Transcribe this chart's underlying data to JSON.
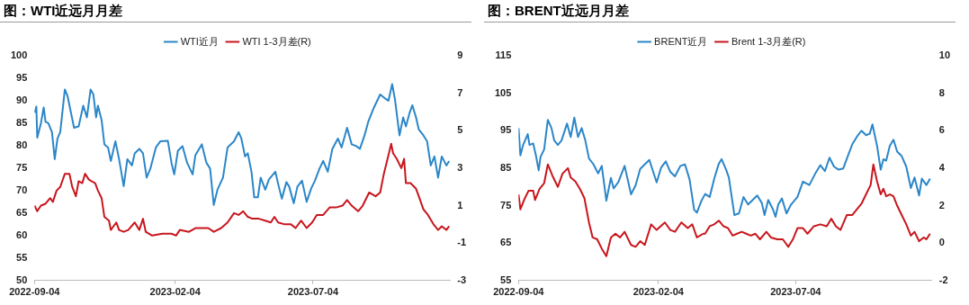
{
  "chart_data": [
    {
      "type": "line",
      "title": "图：WTI近远月月差",
      "xlim": [
        "2022-09-04",
        "2023-11-30"
      ],
      "xticks": [
        "2022-09-04",
        "2023-02-04",
        "2023-07-04"
      ],
      "ylim": [
        50,
        100
      ],
      "yticks": [
        50,
        55,
        60,
        65,
        70,
        75,
        80,
        85,
        90,
        95,
        100
      ],
      "y2lim": [
        -3,
        9
      ],
      "y2ticks": [
        -3,
        -1,
        1,
        3,
        5,
        7,
        9
      ],
      "grid": false,
      "legend": "top",
      "marker": "none",
      "line_style": "solid",
      "series": [
        {
          "name": "WTI近月",
          "color": "#2b86c8",
          "x": [
            "2022-09-04",
            "2022-09-06",
            "2022-09-07",
            "2022-09-11",
            "2022-09-14",
            "2022-09-16",
            "2022-09-19",
            "2022-09-23",
            "2022-09-26",
            "2022-09-29",
            "2022-10-02",
            "2022-10-07",
            "2022-10-10",
            "2022-10-14",
            "2022-10-17",
            "2022-10-22",
            "2022-10-27",
            "2022-10-31",
            "2022-11-04",
            "2022-11-07",
            "2022-11-10",
            "2022-11-12",
            "2022-11-16",
            "2022-11-19",
            "2022-11-23",
            "2022-11-26",
            "2022-12-01",
            "2022-12-05",
            "2022-12-10",
            "2022-12-14",
            "2022-12-19",
            "2022-12-22",
            "2022-12-27",
            "2022-12-31",
            "2023-01-04",
            "2023-01-08",
            "2023-01-14",
            "2023-01-19",
            "2023-01-27",
            "2023-01-31",
            "2023-02-03",
            "2023-02-07",
            "2023-02-12",
            "2023-02-17",
            "2023-02-23",
            "2023-02-26",
            "2023-03-05",
            "2023-03-10",
            "2023-03-14",
            "2023-03-18",
            "2023-03-22",
            "2023-03-28",
            "2023-04-02",
            "2023-04-09",
            "2023-04-14",
            "2023-04-17",
            "2023-04-21",
            "2023-04-24",
            "2023-04-28",
            "2023-05-01",
            "2023-05-05",
            "2023-05-08",
            "2023-05-13",
            "2023-05-17",
            "2023-05-24",
            "2023-05-27",
            "2023-05-31",
            "2023-06-05",
            "2023-06-08",
            "2023-06-13",
            "2023-06-17",
            "2023-06-22",
            "2023-06-27",
            "2023-07-02",
            "2023-07-06",
            "2023-07-11",
            "2023-07-15",
            "2023-07-20",
            "2023-07-25",
            "2023-07-31",
            "2023-08-04",
            "2023-08-10",
            "2023-08-15",
            "2023-08-20",
            "2023-08-24",
            "2023-08-29",
            "2023-09-02",
            "2023-09-08",
            "2023-09-15",
            "2023-09-21",
            "2023-09-24",
            "2023-09-28",
            "2023-10-01",
            "2023-10-06",
            "2023-10-10",
            "2023-10-13",
            "2023-10-17",
            "2023-10-20",
            "2023-10-24",
            "2023-10-27",
            "2023-11-01",
            "2023-11-05",
            "2023-11-09",
            "2023-11-13",
            "2023-11-17",
            "2023-11-21",
            "2023-11-26",
            "2023-11-29"
          ],
          "values": [
            87.3,
            88.7,
            81.8,
            85,
            88.5,
            85.3,
            85,
            83,
            77,
            81.6,
            83,
            92.5,
            91,
            87,
            84,
            84.3,
            88.9,
            86.3,
            92.5,
            91.4,
            86.3,
            88.9,
            85.7,
            80.3,
            79.6,
            76.6,
            81,
            77,
            71,
            77,
            75.6,
            78.3,
            79.3,
            78.3,
            72.9,
            74.9,
            79.6,
            81,
            81.1,
            76.2,
            73.6,
            78.9,
            79.9,
            76.2,
            73.6,
            77.9,
            80.3,
            76.2,
            74.9,
            66.8,
            70.2,
            72.9,
            79.6,
            81,
            83,
            81.6,
            77.6,
            78.3,
            74.2,
            68.5,
            68.5,
            72.9,
            70.2,
            72.5,
            74.2,
            71.5,
            68.2,
            71.9,
            70.9,
            67.2,
            70.9,
            72.2,
            67.5,
            70.5,
            72.2,
            74.9,
            76.6,
            74.2,
            79.3,
            81.6,
            79.6,
            84,
            80.3,
            79.9,
            79.3,
            82.3,
            85.3,
            88.4,
            91.4,
            90.4,
            90,
            93.7,
            90.4,
            82.3,
            86.3,
            84.3,
            87.3,
            89,
            86.3,
            83.6,
            82.3,
            81,
            75.6,
            77.6,
            72.9,
            77.6,
            75.6,
            76.6
          ]
        },
        {
          "name": "WTI 1-3月差(R)",
          "color": "#c8161d",
          "axis": "y2",
          "x": [
            "2022-09-04",
            "2022-09-07",
            "2022-09-11",
            "2022-09-16",
            "2022-09-21",
            "2022-09-24",
            "2022-09-28",
            "2022-10-02",
            "2022-10-07",
            "2022-10-12",
            "2022-10-15",
            "2022-10-19",
            "2022-10-22",
            "2022-10-26",
            "2022-10-29",
            "2022-11-02",
            "2022-11-05",
            "2022-11-09",
            "2022-11-12",
            "2022-11-16",
            "2022-11-19",
            "2022-11-24",
            "2022-11-26",
            "2022-12-02",
            "2022-12-05",
            "2022-12-10",
            "2022-12-15",
            "2022-12-22",
            "2022-12-27",
            "2022-12-31",
            "2023-01-03",
            "2023-01-10",
            "2023-01-21",
            "2023-01-31",
            "2023-02-05",
            "2023-02-09",
            "2023-02-19",
            "2023-02-26",
            "2023-03-05",
            "2023-03-12",
            "2023-03-18",
            "2023-03-26",
            "2023-04-02",
            "2023-04-09",
            "2023-04-14",
            "2023-04-19",
            "2023-04-24",
            "2023-04-29",
            "2023-05-06",
            "2023-05-13",
            "2023-05-19",
            "2023-05-23",
            "2023-05-27",
            "2023-06-03",
            "2023-06-10",
            "2023-06-15",
            "2023-06-21",
            "2023-06-27",
            "2023-07-03",
            "2023-07-08",
            "2023-07-15",
            "2023-07-22",
            "2023-07-29",
            "2023-08-05",
            "2023-08-10",
            "2023-08-15",
            "2023-08-22",
            "2023-08-27",
            "2023-09-03",
            "2023-09-10",
            "2023-09-15",
            "2023-09-19",
            "2023-09-22",
            "2023-09-27",
            "2023-09-29",
            "2023-10-03",
            "2023-10-08",
            "2023-10-11",
            "2023-10-13",
            "2023-10-18",
            "2023-10-24",
            "2023-10-27",
            "2023-11-01",
            "2023-11-06",
            "2023-11-12",
            "2023-11-17",
            "2023-11-21",
            "2023-11-26",
            "2023-11-29"
          ],
          "values": [
            1.0,
            0.7,
            1.0,
            1.1,
            1.4,
            1.2,
            1.8,
            2.0,
            2.7,
            2.7,
            2.0,
            1.5,
            2.3,
            2.2,
            2.7,
            2.4,
            2.3,
            2.2,
            1.8,
            1.4,
            0.4,
            0.2,
            -0.3,
            0.1,
            -0.3,
            -0.4,
            -0.3,
            0.1,
            -0.3,
            0.3,
            -0.4,
            -0.6,
            -0.5,
            -0.5,
            -0.6,
            -0.3,
            -0.4,
            -0.2,
            -0.2,
            -0.2,
            -0.4,
            -0.2,
            0.1,
            0.6,
            0.5,
            0.7,
            0.4,
            0.3,
            0.3,
            0.2,
            0.1,
            0.4,
            0.1,
            0.0,
            0.0,
            -0.2,
            0.2,
            -0.2,
            0.1,
            0.5,
            0.5,
            0.9,
            0.9,
            1.0,
            1.3,
            1.0,
            0.7,
            1.0,
            1.7,
            1.5,
            1.7,
            2.7,
            3.3,
            4.3,
            3.8,
            3.5,
            3.0,
            3.5,
            2.2,
            2.2,
            1.9,
            1.5,
            0.8,
            0.5,
            0.0,
            -0.3,
            -0.1,
            -0.3,
            -0.1
          ]
        }
      ]
    },
    {
      "type": "line",
      "title": "图：BRENT近远月月差",
      "xlim": [
        "2022-09-04",
        "2023-11-30"
      ],
      "xticks": [
        "2022-09-04",
        "2023-02-04",
        "2023-07-04"
      ],
      "ylim": [
        55,
        115
      ],
      "yticks": [
        55,
        65,
        75,
        85,
        95,
        105,
        115
      ],
      "y2lim": [
        -2,
        10
      ],
      "y2ticks": [
        -2,
        0,
        2,
        4,
        6,
        8,
        10
      ],
      "grid": false,
      "legend": "top",
      "marker": "none",
      "line_style": "solid",
      "series": [
        {
          "name": "BRENT近月",
          "color": "#2b86c8",
          "x": [
            "2022-09-04",
            "2022-09-06",
            "2022-09-09",
            "2022-09-14",
            "2022-09-16",
            "2022-09-20",
            "2022-09-23",
            "2022-09-26",
            "2022-09-28",
            "2022-10-02",
            "2022-10-06",
            "2022-10-10",
            "2022-10-13",
            "2022-10-17",
            "2022-10-21",
            "2022-10-27",
            "2022-10-31",
            "2022-11-04",
            "2022-11-08",
            "2022-11-12",
            "2022-11-16",
            "2022-11-20",
            "2022-11-25",
            "2022-11-30",
            "2022-12-04",
            "2022-12-09",
            "2022-12-14",
            "2022-12-17",
            "2022-12-22",
            "2022-12-29",
            "2023-01-05",
            "2023-01-10",
            "2023-01-15",
            "2023-01-25",
            "2023-02-02",
            "2023-02-07",
            "2023-02-12",
            "2023-02-17",
            "2023-02-22",
            "2023-02-28",
            "2023-03-05",
            "2023-03-10",
            "2023-03-15",
            "2023-03-18",
            "2023-03-23",
            "2023-03-27",
            "2023-04-01",
            "2023-04-06",
            "2023-04-11",
            "2023-04-14",
            "2023-04-19",
            "2023-04-22",
            "2023-04-28",
            "2023-05-03",
            "2023-05-08",
            "2023-05-13",
            "2023-05-18",
            "2023-05-23",
            "2023-05-28",
            "2023-05-31",
            "2023-06-04",
            "2023-06-09",
            "2023-06-12",
            "2023-06-15",
            "2023-06-19",
            "2023-06-24",
            "2023-06-29",
            "2023-07-06",
            "2023-07-12",
            "2023-07-19",
            "2023-07-26",
            "2023-07-31",
            "2023-08-05",
            "2023-08-10",
            "2023-08-15",
            "2023-08-20",
            "2023-08-25",
            "2023-08-30",
            "2023-09-04",
            "2023-09-09",
            "2023-09-14",
            "2023-09-19",
            "2023-09-23",
            "2023-09-26",
            "2023-10-01",
            "2023-10-05",
            "2023-10-08",
            "2023-10-11",
            "2023-10-15",
            "2023-10-19",
            "2023-10-23",
            "2023-10-28",
            "2023-11-02",
            "2023-11-07",
            "2023-11-11",
            "2023-11-16",
            "2023-11-19",
            "2023-11-24",
            "2023-11-28"
          ],
          "values": [
            95.7,
            88.4,
            91.2,
            94.1,
            91.2,
            91.6,
            88.4,
            84.4,
            88,
            90,
            97.9,
            95.7,
            92.4,
            91.2,
            92.4,
            96.9,
            93.3,
            98.5,
            93.3,
            95.7,
            92.4,
            87.6,
            86,
            83.6,
            85.6,
            76.3,
            82.4,
            79.6,
            81.2,
            85.6,
            78,
            80.4,
            84.8,
            87.2,
            81.2,
            85.2,
            86.8,
            84,
            82.8,
            85.6,
            86,
            82,
            73.9,
            73.1,
            76.3,
            78.1,
            77.3,
            82.2,
            86.2,
            87.4,
            84.6,
            82.5,
            72.5,
            72.9,
            77.3,
            75.3,
            76.5,
            77.7,
            75.7,
            72.5,
            76.5,
            74.1,
            72,
            75.3,
            76.9,
            72.9,
            75.3,
            77.3,
            81.4,
            80.5,
            83.8,
            85.8,
            84.2,
            87.8,
            85.4,
            84.6,
            84.9,
            88.2,
            91.4,
            93.4,
            95,
            93.8,
            94.2,
            96.7,
            91,
            84.6,
            87.4,
            87,
            91,
            92.6,
            89.4,
            88.2,
            85.4,
            79.7,
            82.5,
            77.7,
            82.2,
            80.5,
            82.2
          ]
        },
        {
          "name": "Brent 1-3月差(R)",
          "color": "#c8161d",
          "axis": "y2",
          "x": [
            "2022-09-04",
            "2022-09-06",
            "2022-09-10",
            "2022-09-15",
            "2022-09-20",
            "2022-09-22",
            "2022-09-27",
            "2022-10-02",
            "2022-10-06",
            "2022-10-11",
            "2022-10-17",
            "2022-10-22",
            "2022-10-28",
            "2022-10-31",
            "2022-11-05",
            "2022-11-10",
            "2022-11-15",
            "2022-11-20",
            "2022-11-24",
            "2022-11-29",
            "2022-12-04",
            "2022-12-09",
            "2022-12-14",
            "2022-12-19",
            "2022-12-24",
            "2022-12-29",
            "2023-01-05",
            "2023-01-10",
            "2023-01-15",
            "2023-01-20",
            "2023-01-27",
            "2023-02-02",
            "2023-02-11",
            "2023-02-17",
            "2023-02-22",
            "2023-03-01",
            "2023-03-08",
            "2023-03-13",
            "2023-03-18",
            "2023-03-25",
            "2023-03-27",
            "2023-04-01",
            "2023-04-06",
            "2023-04-11",
            "2023-04-16",
            "2023-04-21",
            "2023-04-26",
            "2023-05-01",
            "2023-05-06",
            "2023-05-11",
            "2023-05-16",
            "2023-05-21",
            "2023-05-26",
            "2023-06-02",
            "2023-06-07",
            "2023-06-14",
            "2023-06-20",
            "2023-06-26",
            "2023-07-01",
            "2023-07-06",
            "2023-07-12",
            "2023-07-17",
            "2023-07-24",
            "2023-07-31",
            "2023-08-07",
            "2023-08-12",
            "2023-08-17",
            "2023-08-22",
            "2023-08-29",
            "2023-09-04",
            "2023-09-09",
            "2023-09-14",
            "2023-09-19",
            "2023-09-24",
            "2023-09-27",
            "2023-10-01",
            "2023-10-05",
            "2023-10-08",
            "2023-10-11",
            "2023-10-15",
            "2023-10-19",
            "2023-10-23",
            "2023-10-28",
            "2023-11-02",
            "2023-11-07",
            "2023-11-11",
            "2023-11-16",
            "2023-11-21",
            "2023-11-24",
            "2023-11-28"
          ],
          "values": [
            2.6,
            1.8,
            2.3,
            2.8,
            2.8,
            2.3,
            2.9,
            3.2,
            4.2,
            3.6,
            3.0,
            3.7,
            4.0,
            3.5,
            3.3,
            2.9,
            2.4,
            1.1,
            0.3,
            0.2,
            -0.3,
            -0.7,
            0.3,
            0.5,
            0.3,
            0.6,
            -0.1,
            -0.2,
            0.1,
            -0.1,
            1.0,
            0.7,
            1.1,
            0.7,
            0.6,
            1.1,
            0.8,
            1.0,
            0.3,
            0.5,
            0.5,
            0.9,
            1.0,
            1.2,
            0.9,
            0.8,
            0.4,
            0.5,
            0.6,
            0.5,
            0.4,
            0.5,
            0.2,
            0.6,
            0.3,
            0.2,
            0.2,
            -0.2,
            0.2,
            0.8,
            0.8,
            0.5,
            0.9,
            1.0,
            0.9,
            1.3,
            0.9,
            0.7,
            1.5,
            1.5,
            1.8,
            2.1,
            2.6,
            3.1,
            4.2,
            3.3,
            2.6,
            2.9,
            2.5,
            2.6,
            2.5,
            2.0,
            1.5,
            1.0,
            0.4,
            0.6,
            0.1,
            0.3,
            0.2,
            0.5
          ]
        }
      ]
    }
  ]
}
